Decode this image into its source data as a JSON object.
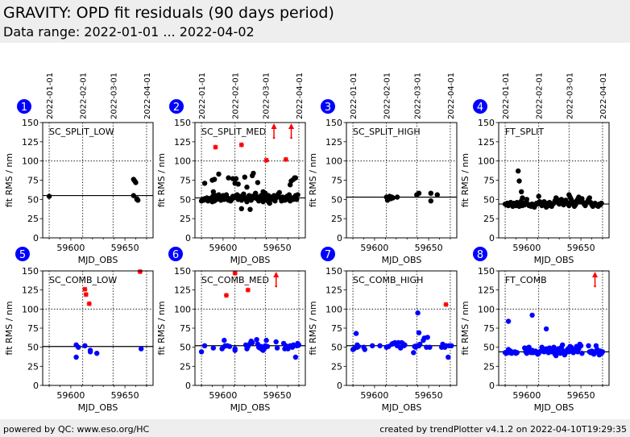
{
  "header": {
    "title": "GRAVITY: OPD fit residuals (90 days period)",
    "subtitle": "Data range: 2022-01-01 ... 2022-04-02"
  },
  "footer": {
    "left": "powered by QC: www.eso.org/HC",
    "right": "created by trendPlotter v4.1.2 on 2022-04-10T19:29:35"
  },
  "colors": {
    "split_points": "#000000",
    "comb_points": "#0000ff",
    "outlier": "#ff0000",
    "badge": "#0000ff",
    "header_bg": "#eeeeee"
  },
  "date_ticks": {
    "labels": [
      "2022-01-01",
      "2022-02-01",
      "2022-03-01",
      "2022-04-01"
    ],
    "mjd": [
      59580,
      59611,
      59639,
      59670
    ]
  },
  "chart_data": [
    {
      "type": "scatter",
      "badge": "1",
      "title": "SC_SPLIT_LOW",
      "xlabel": "MJD_OBS",
      "ylabel": "fit RMS / nm",
      "xlim": [
        59574,
        59676
      ],
      "ylim": [
        0,
        150
      ],
      "xticks": [
        59600,
        59650
      ],
      "yticks": [
        0,
        25,
        50,
        75,
        100,
        125,
        150
      ],
      "grid": true,
      "show_date_axis": true,
      "point_color": "#000000",
      "median": 55,
      "x": [
        59580,
        59658,
        59659,
        59660,
        59658,
        59661,
        59662,
        59661
      ],
      "y": [
        54,
        76,
        74,
        72,
        55,
        50,
        49,
        51
      ],
      "outliers": [],
      "arrows": []
    },
    {
      "type": "scatter",
      "badge": "2",
      "title": "SC_SPLIT_MED",
      "xlabel": "MJD_OBS",
      "ylabel": "fit RMS / nm",
      "xlim": [
        59574,
        59676
      ],
      "ylim": [
        0,
        150
      ],
      "xticks": [
        59600,
        59650
      ],
      "yticks": [
        0,
        25,
        50,
        75,
        100,
        125,
        150
      ],
      "grid": true,
      "show_date_axis": true,
      "point_color": "#000000",
      "median": 52,
      "x": [
        59580,
        59581,
        59582,
        59583,
        59584,
        59585,
        59586,
        59587,
        59588,
        59589,
        59590,
        59591,
        59591,
        59592,
        59592,
        59593,
        59594,
        59595,
        59596,
        59597,
        59598,
        59599,
        59600,
        59601,
        59602,
        59603,
        59604,
        59605,
        59606,
        59607,
        59608,
        59609,
        59610,
        59611,
        59612,
        59613,
        59614,
        59615,
        59616,
        59617,
        59618,
        59619,
        59620,
        59621,
        59622,
        59623,
        59624,
        59625,
        59626,
        59627,
        59628,
        59629,
        59630,
        59631,
        59632,
        59633,
        59634,
        59635,
        59636,
        59637,
        59638,
        59639,
        59640,
        59641,
        59642,
        59643,
        59644,
        59645,
        59646,
        59647,
        59648,
        59649,
        59650,
        59651,
        59652,
        59653,
        59654,
        59655,
        59656,
        59657,
        59658,
        59659,
        59660,
        59661,
        59662,
        59663,
        59664,
        59665,
        59666,
        59667,
        59668,
        59669,
        59592,
        59590,
        59596,
        59605,
        59609,
        59612,
        59614,
        59620,
        59622,
        59627,
        59628,
        59632,
        59637,
        59642,
        59662,
        59663,
        59665,
        59666,
        59667,
        59617,
        59625,
        59611,
        59583
      ],
      "y": [
        48,
        50,
        49,
        51,
        50,
        52,
        48,
        50,
        49,
        52,
        47,
        55,
        60,
        53,
        48,
        55,
        50,
        51,
        56,
        54,
        49,
        52,
        55,
        50,
        53,
        56,
        52,
        49,
        51,
        48,
        50,
        54,
        52,
        53,
        55,
        56,
        50,
        54,
        52,
        49,
        55,
        57,
        52,
        50,
        47,
        53,
        55,
        51,
        49,
        54,
        52,
        55,
        58,
        51,
        53,
        48,
        52,
        55,
        50,
        47,
        53,
        58,
        52,
        49,
        47,
        45,
        51,
        53,
        50,
        55,
        48,
        52,
        54,
        57,
        59,
        52,
        48,
        53,
        50,
        49,
        51,
        54,
        50,
        56,
        48,
        51,
        52,
        50,
        53,
        55,
        50,
        56,
        76,
        75,
        83,
        78,
        77,
        77,
        70,
        79,
        66,
        81,
        84,
        72,
        60,
        55,
        69,
        74,
        76,
        78,
        78,
        38,
        37,
        71,
        71
      ],
      "outliers": [
        {
          "x": 59593,
          "y": 118
        },
        {
          "x": 59617,
          "y": 121
        },
        {
          "x": 59640,
          "y": 101
        },
        {
          "x": 59658,
          "y": 102
        }
      ],
      "arrows": [
        {
          "x": 59647
        },
        {
          "x": 59663
        }
      ]
    },
    {
      "type": "scatter",
      "badge": "3",
      "title": "SC_SPLIT_HIGH",
      "xlabel": "MJD_OBS",
      "ylabel": "fit RMS / nm",
      "xlim": [
        59574,
        59676
      ],
      "ylim": [
        0,
        150
      ],
      "xticks": [
        59600,
        59650
      ],
      "yticks": [
        0,
        25,
        50,
        75,
        100,
        125,
        150
      ],
      "grid": true,
      "show_date_axis": true,
      "point_color": "#000000",
      "median": 53,
      "x": [
        59611,
        59612,
        59613,
        59614,
        59615,
        59616,
        59617,
        59621,
        59639,
        59641,
        59652,
        59652,
        59658
      ],
      "y": [
        53,
        49,
        52,
        54,
        51,
        53,
        52,
        53,
        56,
        58,
        58,
        48,
        56
      ],
      "outliers": [],
      "arrows": []
    },
    {
      "type": "scatter",
      "badge": "4",
      "title": "FT_SPLIT",
      "xlabel": "MJD_OBS",
      "ylabel": "fit RMS / nm",
      "xlim": [
        59574,
        59676
      ],
      "ylim": [
        0,
        150
      ],
      "xticks": [
        59600,
        59650
      ],
      "yticks": [
        0,
        25,
        50,
        75,
        100,
        125,
        150
      ],
      "grid": true,
      "show_date_axis": true,
      "point_color": "#000000",
      "median": 44,
      "x": [
        59580,
        59581,
        59582,
        59583,
        59584,
        59585,
        59586,
        59587,
        59588,
        59589,
        59590,
        59591,
        59592,
        59593,
        59594,
        59595,
        59596,
        59597,
        59598,
        59599,
        59600,
        59601,
        59602,
        59603,
        59604,
        59605,
        59606,
        59607,
        59608,
        59609,
        59610,
        59611,
        59612,
        59613,
        59614,
        59615,
        59616,
        59617,
        59618,
        59619,
        59620,
        59621,
        59622,
        59623,
        59624,
        59625,
        59626,
        59627,
        59628,
        59629,
        59630,
        59631,
        59632,
        59633,
        59634,
        59635,
        59636,
        59637,
        59638,
        59639,
        59640,
        59641,
        59642,
        59643,
        59644,
        59645,
        59646,
        59647,
        59648,
        59649,
        59650,
        59651,
        59652,
        59653,
        59654,
        59655,
        59656,
        59657,
        59658,
        59659,
        59660,
        59661,
        59662,
        59663,
        59664,
        59665,
        59666,
        59667,
        59668,
        59669,
        59592,
        59593,
        59595,
        59596,
        59611,
        59618,
        59639,
        59640
      ],
      "y": [
        44,
        43,
        45,
        42,
        44,
        46,
        43,
        41,
        45,
        44,
        42,
        46,
        43,
        41,
        45,
        48,
        42,
        44,
        43,
        46,
        50,
        44,
        42,
        43,
        41,
        44,
        42,
        40,
        43,
        45,
        44,
        46,
        47,
        44,
        42,
        45,
        47,
        43,
        45,
        44,
        42,
        46,
        43,
        41,
        44,
        45,
        48,
        52,
        50,
        46,
        44,
        48,
        50,
        45,
        43,
        47,
        49,
        46,
        44,
        42,
        45,
        50,
        47,
        44,
        41,
        43,
        48,
        50,
        53,
        47,
        49,
        51,
        46,
        44,
        42,
        45,
        47,
        50,
        52,
        46,
        43,
        41,
        44,
        45,
        43,
        42,
        41,
        44,
        43,
        45,
        87,
        74,
        60,
        52,
        54,
        40,
        56,
        53
      ],
      "outliers": [],
      "arrows": []
    },
    {
      "type": "scatter",
      "badge": "5",
      "title": "SC_COMB_LOW",
      "xlabel": "MJD_OBS",
      "ylabel": "fit RMS / nm",
      "xlim": [
        59574,
        59676
      ],
      "ylim": [
        0,
        150
      ],
      "xticks": [
        59600,
        59650
      ],
      "yticks": [
        0,
        25,
        50,
        75,
        100,
        125,
        150
      ],
      "grid": true,
      "show_date_axis": false,
      "point_color": "#0000ff",
      "median": 51,
      "x": [
        59605,
        59605,
        59607,
        59613,
        59618,
        59618,
        59624,
        59665
      ],
      "y": [
        53,
        37,
        50,
        52,
        46,
        44,
        42,
        48
      ],
      "outliers": [
        {
          "x": 59613,
          "y": 126
        },
        {
          "x": 59614,
          "y": 119
        },
        {
          "x": 59617,
          "y": 107
        },
        {
          "x": 59664,
          "y": 149
        }
      ],
      "arrows": []
    },
    {
      "type": "scatter",
      "badge": "6",
      "title": "SC_COMB_MED",
      "xlabel": "MJD_OBS",
      "ylabel": "fit RMS / nm",
      "xlim": [
        59574,
        59676
      ],
      "ylim": [
        0,
        150
      ],
      "xticks": [
        59600,
        59650
      ],
      "yticks": [
        0,
        25,
        50,
        75,
        100,
        125,
        150
      ],
      "grid": true,
      "show_date_axis": false,
      "point_color": "#0000ff",
      "median": 52,
      "x": [
        59580,
        59583,
        59591,
        59599,
        59600,
        59601,
        59602,
        59604,
        59606,
        59611,
        59611,
        59621,
        59622,
        59623,
        59625,
        59626,
        59627,
        59631,
        59632,
        59633,
        59634,
        59635,
        59636,
        59637,
        59638,
        59639,
        59640,
        59641,
        59649,
        59650,
        59656,
        59657,
        59658,
        59660,
        59662,
        59663,
        59664,
        59665,
        59667,
        59668,
        59669,
        59670
      ],
      "y": [
        44,
        52,
        49,
        48,
        50,
        59,
        52,
        52,
        51,
        48,
        46,
        53,
        48,
        51,
        55,
        58,
        56,
        60,
        54,
        50,
        49,
        51,
        47,
        46,
        48,
        52,
        59,
        51,
        57,
        49,
        55,
        48,
        52,
        48,
        52,
        51,
        50,
        53,
        37,
        52,
        55,
        53
      ],
      "outliers": [
        {
          "x": 59603,
          "y": 118
        },
        {
          "x": 59611,
          "y": 147
        },
        {
          "x": 59623,
          "y": 125
        }
      ],
      "arrows": [
        {
          "x": 59649
        }
      ]
    },
    {
      "type": "scatter",
      "badge": "7",
      "title": "SC_COMB_HIGH",
      "xlabel": "MJD_OBS",
      "ylabel": "fit RMS / nm",
      "xlim": [
        59574,
        59676
      ],
      "ylim": [
        0,
        150
      ],
      "xticks": [
        59600,
        59650
      ],
      "yticks": [
        0,
        25,
        50,
        75,
        100,
        125,
        150
      ],
      "grid": true,
      "show_date_axis": false,
      "point_color": "#0000ff",
      "median": 52,
      "x": [
        59580,
        59581,
        59583,
        59584,
        59584,
        59585,
        59590,
        59591,
        59598,
        59605,
        59611,
        59613,
        59616,
        59617,
        59618,
        59619,
        59620,
        59621,
        59622,
        59624,
        59625,
        59626,
        59627,
        59628,
        59636,
        59637,
        59638,
        59639,
        59640,
        59641,
        59641,
        59642,
        59645,
        59646,
        59648,
        59649,
        59651,
        59662,
        59663,
        59664,
        59665,
        59666,
        59668,
        59669,
        59671
      ],
      "y": [
        47,
        48,
        68,
        53,
        50,
        51,
        50,
        47,
        52,
        52,
        50,
        51,
        54,
        55,
        55,
        56,
        55,
        52,
        56,
        49,
        56,
        55,
        52,
        53,
        43,
        51,
        50,
        52,
        95,
        52,
        69,
        54,
        59,
        62,
        50,
        63,
        50,
        50,
        54,
        52,
        50,
        52,
        37,
        52,
        52
      ],
      "outliers": [
        {
          "x": 59666,
          "y": 106
        }
      ],
      "arrows": []
    },
    {
      "type": "scatter",
      "badge": "8",
      "title": "FT_COMB",
      "xlabel": "MJD_OBS",
      "ylabel": "fit RMS / nm",
      "xlim": [
        59574,
        59676
      ],
      "ylim": [
        0,
        150
      ],
      "xticks": [
        59600,
        59650
      ],
      "yticks": [
        0,
        25,
        50,
        75,
        100,
        125,
        150
      ],
      "grid": true,
      "show_date_axis": false,
      "point_color": "#0000ff",
      "median": 44,
      "x": [
        59580,
        59581,
        59582,
        59583,
        59584,
        59585,
        59586,
        59589,
        59590,
        59591,
        59598,
        59599,
        59600,
        59601,
        59602,
        59603,
        59604,
        59605,
        59606,
        59607,
        59608,
        59609,
        59610,
        59611,
        59612,
        59613,
        59614,
        59615,
        59616,
        59617,
        59618,
        59619,
        59620,
        59621,
        59622,
        59623,
        59624,
        59625,
        59626,
        59627,
        59628,
        59629,
        59630,
        59631,
        59632,
        59633,
        59634,
        59635,
        59636,
        59637,
        59638,
        59639,
        59640,
        59641,
        59642,
        59643,
        59644,
        59646,
        59647,
        59648,
        59649,
        59650,
        59651,
        59657,
        59658,
        59659,
        59660,
        59661,
        59662,
        59663,
        59664,
        59665,
        59666,
        59667,
        59668,
        59669,
        59670,
        59583,
        59605,
        59618
      ],
      "y": [
        43,
        42,
        44,
        47,
        43,
        45,
        42,
        44,
        42,
        43,
        49,
        44,
        42,
        49,
        50,
        45,
        43,
        46,
        43,
        44,
        45,
        43,
        41,
        42,
        44,
        45,
        50,
        47,
        44,
        46,
        48,
        45,
        43,
        49,
        47,
        44,
        46,
        50,
        41,
        39,
        45,
        48,
        44,
        42,
        50,
        53,
        45,
        40,
        43,
        46,
        48,
        44,
        51,
        50,
        45,
        43,
        47,
        51,
        44,
        48,
        54,
        52,
        42,
        52,
        44,
        43,
        45,
        42,
        41,
        44,
        52,
        47,
        43,
        40,
        45,
        42,
        44,
        84,
        92,
        74
      ],
      "outliers": [],
      "arrows": [
        {
          "x": 59663
        }
      ]
    }
  ]
}
